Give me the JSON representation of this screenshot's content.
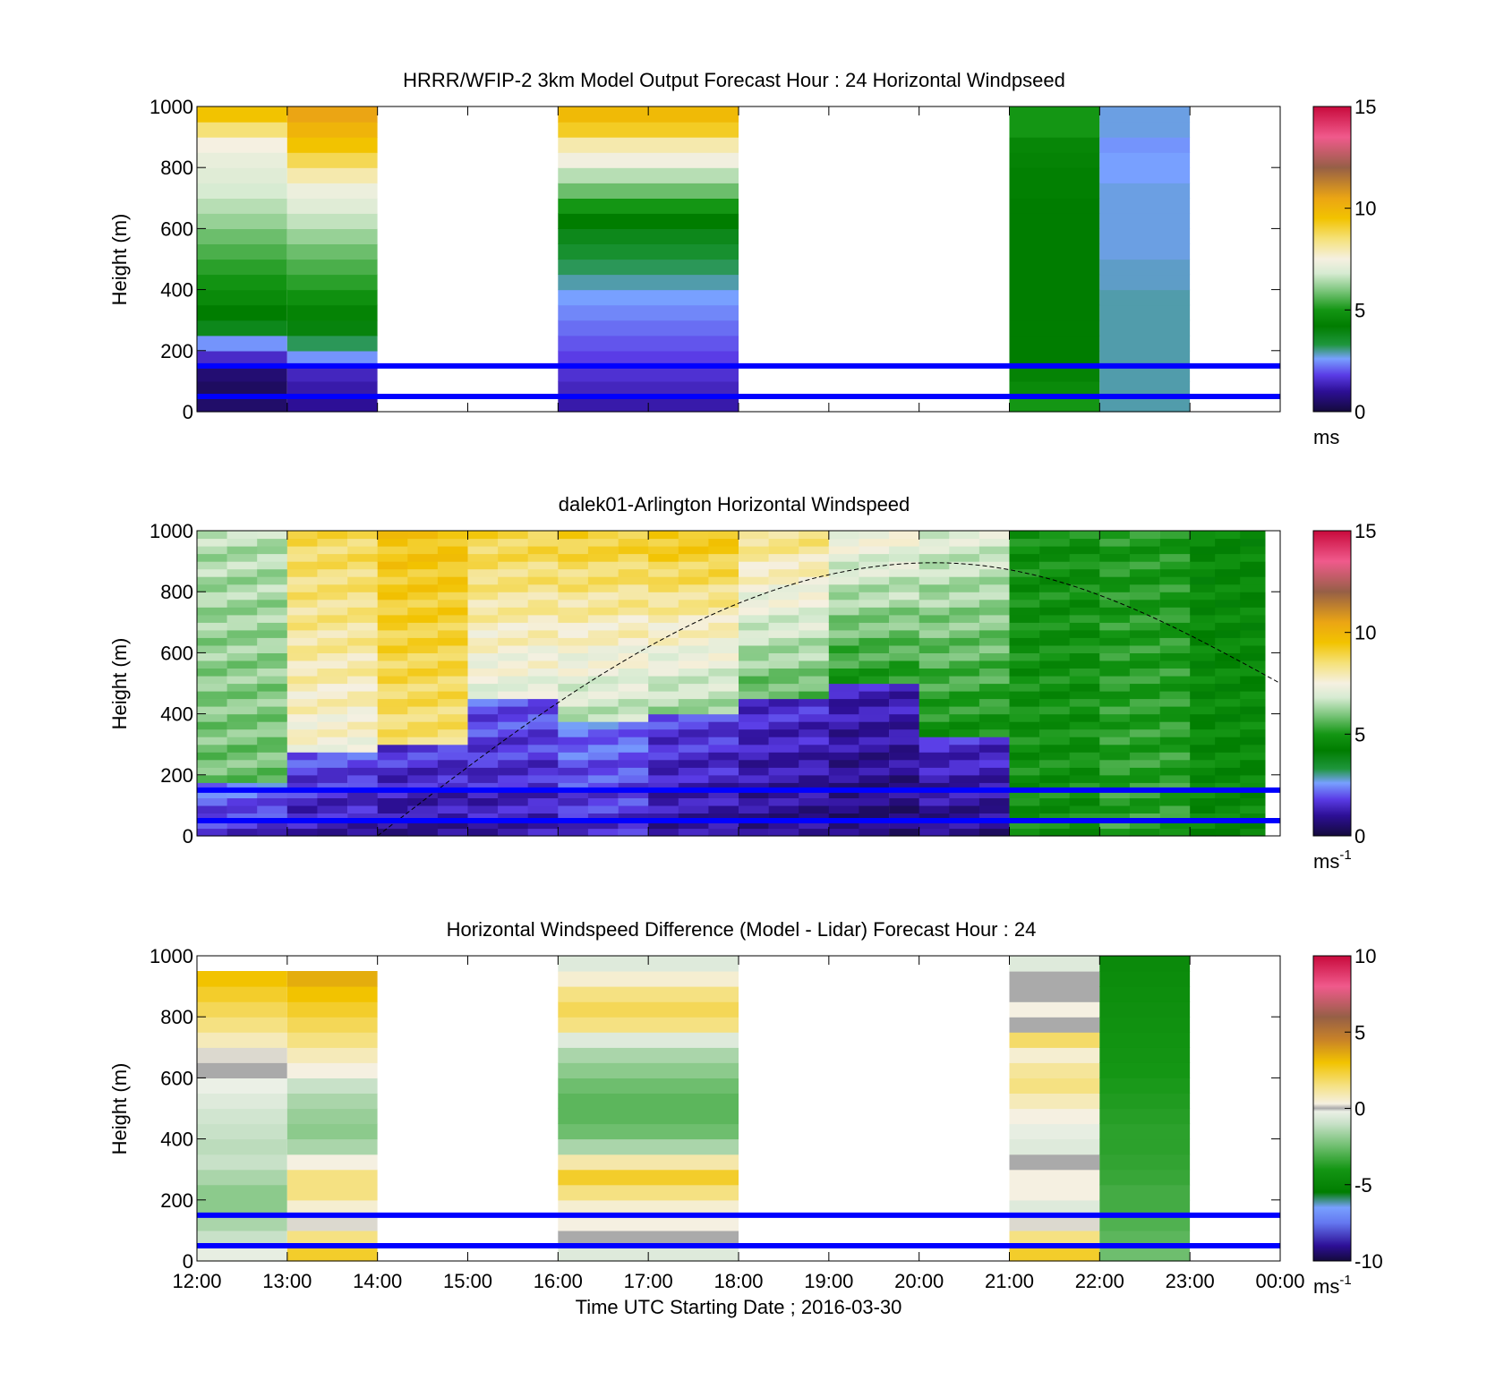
{
  "figure": {
    "xlabel": "Time UTC  Starting Date ; 2016-03-30",
    "x_tick_labels": [
      "12:00",
      "13:00",
      "14:00",
      "15:00",
      "16:00",
      "17:00",
      "18:00",
      "19:00",
      "20:00",
      "21:00",
      "22:00",
      "23:00",
      "00:00"
    ]
  },
  "chart_data": [
    {
      "type": "heatmap",
      "title": "HRRR/WFIP-2 3km Model Output   Forecast Hour : 24 Horizontal Windpseed",
      "ylabel": "Height (m)",
      "xlim": [
        "12:00",
        "00:00"
      ],
      "ylim": [
        0,
        1000
      ],
      "y_ticks": [
        0,
        200,
        400,
        600,
        800,
        1000
      ],
      "colorbar": {
        "range": [
          0,
          15
        ],
        "ticks": [
          0,
          5,
          10,
          15
        ],
        "unit": "ms"
      },
      "reference_lines_m": [
        50,
        150
      ],
      "reference_line_color": "#0000ff",
      "heights_m": [
        25,
        75,
        125,
        175,
        225,
        275,
        325,
        375,
        425,
        475,
        525,
        575,
        625,
        675,
        725,
        775,
        825,
        875,
        925,
        975
      ],
      "columns": [
        {
          "start": "12:00",
          "end": "13:00",
          "values": [
            0.5,
            0.4,
            0.6,
            1.5,
            2.5,
            3.8,
            4.2,
            4.6,
            4.9,
            5.2,
            5.5,
            5.8,
            6.2,
            6.5,
            6.8,
            7.0,
            7.2,
            7.5,
            8.5,
            9.5
          ]
        },
        {
          "start": "13:00",
          "end": "14:00",
          "values": [
            1.0,
            1.2,
            1.4,
            2.5,
            3.2,
            4.0,
            4.4,
            4.8,
            5.2,
            5.5,
            5.8,
            6.2,
            6.6,
            7.0,
            7.3,
            8.0,
            8.8,
            9.5,
            10.0,
            10.5
          ]
        },
        {
          "start": "16:00",
          "end": "18:00",
          "values": [
            1.2,
            1.4,
            1.6,
            1.8,
            2.0,
            2.2,
            2.4,
            2.6,
            2.9,
            3.2,
            3.5,
            3.8,
            4.2,
            5.0,
            5.8,
            6.5,
            7.4,
            8.0,
            9.2,
            9.8
          ]
        },
        {
          "start": "21:00",
          "end": "22:00",
          "values": [
            5.0,
            4.6,
            4.4,
            4.2,
            4.2,
            4.2,
            4.2,
            4.2,
            4.2,
            4.2,
            4.2,
            4.2,
            4.2,
            4.2,
            4.3,
            4.3,
            4.4,
            4.5,
            5.0,
            5.0
          ]
        },
        {
          "start": "22:00",
          "end": "23:00",
          "values": [
            2.9,
            2.9,
            2.9,
            2.9,
            2.9,
            2.9,
            2.9,
            2.9,
            2.8,
            2.8,
            2.7,
            2.7,
            2.7,
            2.7,
            2.7,
            2.6,
            2.6,
            2.5,
            2.7,
            2.7
          ]
        }
      ]
    },
    {
      "type": "heatmap",
      "title": "dalek01-Arlington  Horizontal Windspeed",
      "ylabel": "Height (m)",
      "xlim": [
        "12:00",
        "00:00"
      ],
      "ylim": [
        0,
        1000
      ],
      "y_ticks": [
        0,
        200,
        400,
        600,
        800,
        1000
      ],
      "colorbar": {
        "range": [
          0,
          15
        ],
        "ticks": [
          0,
          5,
          10,
          15
        ],
        "unit": "ms",
        "unit_superscript": "-1"
      },
      "reference_lines_m": [
        50,
        150
      ],
      "reference_line_color": "#0000ff",
      "curve": {
        "color": "#000000",
        "style": "dashed",
        "peak_time": "20:10",
        "peak_height_m": 895,
        "end_height_m": 500
      },
      "profiles": [
        {
          "start": "12:00",
          "end": "13:00",
          "surface": 1.5,
          "jet_top_m": 170,
          "aloft": 5.8,
          "top": 6.5
        },
        {
          "start": "13:00",
          "end": "14:00",
          "surface": 1.2,
          "jet_top_m": 280,
          "aloft": 7.5,
          "top": 8.8
        },
        {
          "start": "14:00",
          "end": "15:00",
          "surface": 1.0,
          "jet_top_m": 310,
          "aloft": 8.5,
          "top": 9.5
        },
        {
          "start": "15:00",
          "end": "16:00",
          "surface": 1.2,
          "jet_top_m": 440,
          "aloft": 7.0,
          "top": 9.0
        },
        {
          "start": "16:00",
          "end": "17:00",
          "surface": 1.5,
          "jet_top_m": 370,
          "aloft": 6.5,
          "top": 9.2
        },
        {
          "start": "17:00",
          "end": "18:00",
          "surface": 1.0,
          "jet_top_m": 390,
          "aloft": 6.2,
          "top": 9.5
        },
        {
          "start": "18:00",
          "end": "19:00",
          "surface": 0.8,
          "jet_top_m": 440,
          "aloft": 5.5,
          "top": 8.5
        },
        {
          "start": "19:00",
          "end": "20:00",
          "surface": 0.6,
          "jet_top_m": 510,
          "aloft": 5.0,
          "top": 7.5
        },
        {
          "start": "20:00",
          "end": "21:00",
          "surface": 0.8,
          "jet_top_m": 330,
          "aloft": 4.8,
          "top": 7.0
        },
        {
          "start": "21:00",
          "end": "22:00",
          "surface": 4.2,
          "jet_top_m": 0,
          "aloft": 4.8,
          "top": 4.8
        },
        {
          "start": "22:00",
          "end": "23:00",
          "surface": 4.5,
          "jet_top_m": 0,
          "aloft": 5.2,
          "top": 5.0
        },
        {
          "start": "23:00",
          "end": "23:50",
          "surface": 4.2,
          "jet_top_m": 0,
          "aloft": 4.6,
          "top": 4.5
        }
      ]
    },
    {
      "type": "heatmap",
      "title": "Horizontal Windspeed Difference (Model - Lidar) Forecast Hour : 24",
      "ylabel": "Height (m)",
      "xlim": [
        "12:00",
        "00:00"
      ],
      "ylim": [
        0,
        1000
      ],
      "y_ticks": [
        0,
        200,
        400,
        600,
        800,
        1000
      ],
      "colorbar": {
        "range": [
          -10,
          10
        ],
        "ticks": [
          -10,
          -5,
          0,
          5,
          10
        ],
        "unit": "ms",
        "unit_superscript": "-1"
      },
      "reference_lines_m": [
        50,
        150
      ],
      "reference_line_color": "#0000ff",
      "heights_m": [
        25,
        75,
        125,
        175,
        225,
        275,
        325,
        375,
        425,
        475,
        525,
        575,
        625,
        675,
        725,
        775,
        825,
        875,
        925,
        975
      ],
      "columns": [
        {
          "start": "12:00",
          "end": "13:00",
          "values": [
            -0.3,
            -1.0,
            -1.5,
            -2.0,
            -2.0,
            -1.5,
            -1.0,
            -1.2,
            -1.0,
            -0.8,
            -0.5,
            -0.2,
            0.0,
            0.2,
            0.8,
            1.5,
            2.0,
            2.5,
            3.0,
            null
          ]
        },
        {
          "start": "13:00",
          "end": "14:00",
          "values": [
            2.5,
            1.5,
            0.2,
            0.5,
            1.5,
            1.5,
            0.3,
            -1.5,
            -2.0,
            -1.8,
            -1.5,
            -1.0,
            0.3,
            0.8,
            1.5,
            2.0,
            2.5,
            3.0,
            3.5,
            null
          ]
        },
        {
          "start": "16:00",
          "end": "18:00",
          "values": [
            -0.5,
            0.0,
            0.3,
            0.5,
            1.5,
            2.5,
            1.0,
            -1.5,
            -2.5,
            -2.8,
            -2.8,
            -2.5,
            -2.0,
            -1.5,
            -0.5,
            1.5,
            2.0,
            1.5,
            0.5,
            -0.5
          ]
        },
        {
          "start": "21:00",
          "end": "22:00",
          "values": [
            2.5,
            1.5,
            0.2,
            -0.5,
            0.3,
            0.3,
            0.0,
            -0.5,
            -0.3,
            0.3,
            0.8,
            1.5,
            1.2,
            0.5,
            1.8,
            0.0,
            0.3,
            0.0,
            0.0,
            -0.5
          ]
        },
        {
          "start": "22:00",
          "end": "23:00",
          "values": [
            -2.5,
            -2.8,
            -3.0,
            -3.2,
            -3.2,
            -3.4,
            -3.5,
            -3.6,
            -3.6,
            -3.7,
            -3.8,
            -3.9,
            -4.0,
            -4.1,
            -4.2,
            -4.3,
            -4.4,
            -4.5,
            -4.6,
            -4.7
          ]
        }
      ]
    }
  ]
}
